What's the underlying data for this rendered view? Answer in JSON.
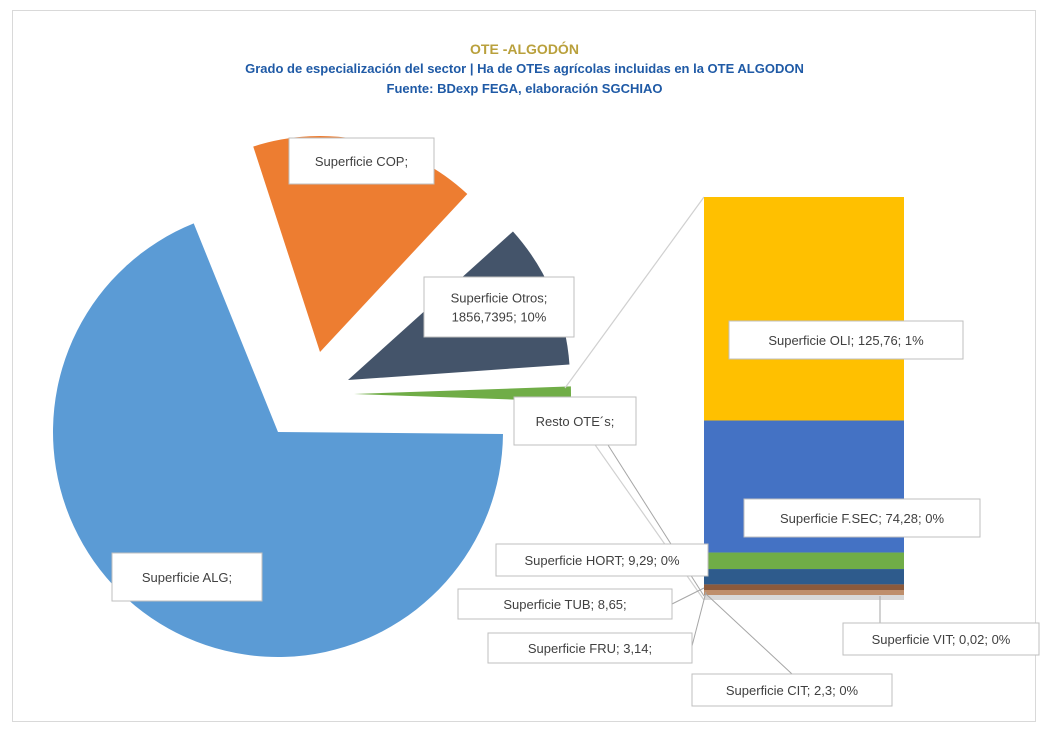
{
  "chart_title": "OTE -ALGODÓN",
  "chart_subtitle": "Grado de especialización  del sector | Ha de OTEs agrícolas incluidas  en la OTE ALGODON",
  "chart_source": "Fuente: BDexp FEGA,  elaboración SGCHIAO",
  "colors": {
    "alg": "#5b9bd5",
    "cop": "#ed7d31",
    "otros": "#44546a",
    "resto": "#70ad47",
    "oli": "#ffc000",
    "fsec": "#4472c4",
    "hort": "#70ad47",
    "tub": "#2e5b8c",
    "fru": "#8c5a3c",
    "cit": "#bf8f6c",
    "vit": "#d9d9d9"
  },
  "chart_data": {
    "type": "bar-of-pie",
    "pie": {
      "slices": [
        {
          "key": "alg",
          "label": "Superficie ALG;"
        },
        {
          "key": "cop",
          "label": "Superficie COP;"
        },
        {
          "key": "otros",
          "label": "Superficie Otros;",
          "value": "1856,7395",
          "percent": "10%"
        },
        {
          "key": "resto",
          "label": "Resto OTE´s;"
        }
      ]
    },
    "bar": {
      "segments": [
        {
          "key": "oli",
          "label": "Superficie OLI; 125,76; 1%",
          "value": 125.76
        },
        {
          "key": "fsec",
          "label": "Superficie F.SEC;  74,28; 0%",
          "value": 74.28
        },
        {
          "key": "hort",
          "label": "Superficie HORT; 9,29; 0%",
          "value": 9.29
        },
        {
          "key": "tub",
          "label": "Superficie TUB;  8,65;",
          "value": 8.65
        },
        {
          "key": "fru",
          "label": "Superficie FRU; 3,14;",
          "value": 3.14
        },
        {
          "key": "cit",
          "label": "Superficie CIT; 2,3; 0%",
          "value": 2.3
        },
        {
          "key": "vit",
          "label": "Superficie VIT;  0,02; 0%",
          "value": 0.02
        }
      ]
    }
  }
}
